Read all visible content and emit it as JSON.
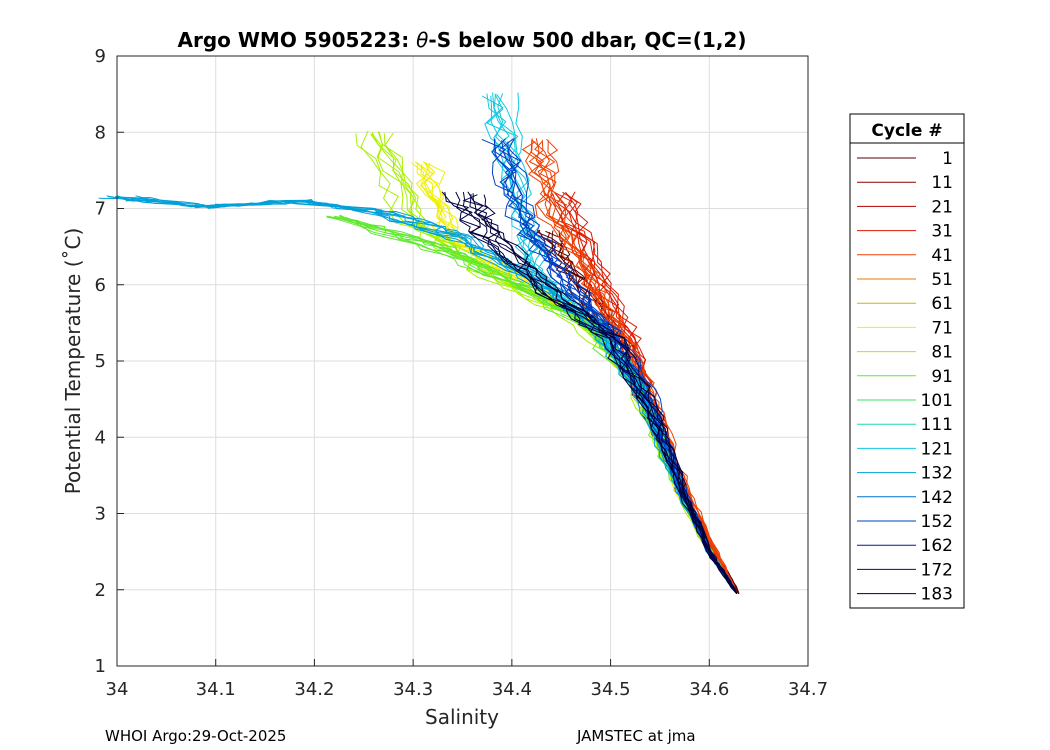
{
  "chart_data": {
    "type": "line",
    "title_parts": {
      "prefix": "Argo WMO 5905223: ",
      "theta": "θ",
      "suffix": "-S below 500 dbar,  QC=(1,2)"
    },
    "xlabel": "Salinity",
    "ylabel": "Potential Temperature (˚C)",
    "xlim": [
      34.0,
      34.7
    ],
    "ylim": [
      1,
      9
    ],
    "xticks": [
      "34",
      "34.1",
      "34.2",
      "34.3",
      "34.4",
      "34.5",
      "34.6",
      "34.7"
    ],
    "xtick_values": [
      34.0,
      34.1,
      34.2,
      34.3,
      34.4,
      34.5,
      34.6,
      34.7
    ],
    "yticks": [
      "1",
      "2",
      "3",
      "4",
      "5",
      "6",
      "7",
      "8",
      "9"
    ],
    "ytick_values": [
      1,
      2,
      3,
      4,
      5,
      6,
      7,
      8,
      9
    ],
    "grid": true,
    "legend": {
      "title": "Cycle #",
      "position": "right-outside",
      "entries": [
        {
          "label": "1",
          "color": "#5a0000"
        },
        {
          "label": "11",
          "color": "#8c0000"
        },
        {
          "label": "21",
          "color": "#b40000"
        },
        {
          "label": "31",
          "color": "#dc1a00"
        },
        {
          "label": "41",
          "color": "#f04000"
        },
        {
          "label": "51",
          "color": "#e87a00"
        },
        {
          "label": "61",
          "color": "#d2b400"
        },
        {
          "label": "71",
          "color": "#f0f000"
        },
        {
          "label": "81",
          "color": "#a8f000"
        },
        {
          "label": "91",
          "color": "#60e830"
        },
        {
          "label": "101",
          "color": "#38e060"
        },
        {
          "label": "111",
          "color": "#20d8b0"
        },
        {
          "label": "121",
          "color": "#10c8e0"
        },
        {
          "label": "132",
          "color": "#00a0d8"
        },
        {
          "label": "142",
          "color": "#0070d0"
        },
        {
          "label": "152",
          "color": "#0040c8"
        },
        {
          "label": "162",
          "color": "#0018a8"
        },
        {
          "label": "172",
          "color": "#000c78"
        },
        {
          "label": "183",
          "color": "#000040"
        }
      ]
    },
    "representative_profiles": [
      {
        "cycle": "1",
        "color": "#5a0000",
        "points": [
          [
            34.43,
            6.7
          ],
          [
            34.47,
            6.0
          ],
          [
            34.51,
            5.2
          ],
          [
            34.54,
            4.3
          ],
          [
            34.57,
            3.3
          ],
          [
            34.6,
            2.6
          ],
          [
            34.63,
            1.95
          ]
        ]
      },
      {
        "cycle": "31",
        "color": "#dc1a00",
        "points": [
          [
            34.45,
            7.2
          ],
          [
            34.48,
            6.3
          ],
          [
            34.52,
            5.3
          ],
          [
            34.545,
            4.3
          ],
          [
            34.57,
            3.4
          ],
          [
            34.6,
            2.6
          ],
          [
            34.628,
            1.95
          ]
        ]
      },
      {
        "cycle": "41",
        "color": "#f04000",
        "points": [
          [
            34.42,
            7.9
          ],
          [
            34.44,
            6.9
          ],
          [
            34.48,
            6.0
          ],
          [
            34.52,
            5.1
          ],
          [
            34.55,
            4.2
          ],
          [
            34.58,
            3.2
          ],
          [
            34.628,
            1.95
          ]
        ]
      },
      {
        "cycle": "71",
        "color": "#f0f000",
        "points": [
          [
            34.31,
            7.6
          ],
          [
            34.34,
            6.6
          ],
          [
            34.42,
            6.0
          ],
          [
            34.49,
            5.4
          ],
          [
            34.53,
            4.6
          ],
          [
            34.56,
            3.6
          ],
          [
            34.6,
            2.5
          ],
          [
            34.628,
            1.95
          ]
        ]
      },
      {
        "cycle": "81",
        "color": "#a8f000",
        "points": [
          [
            34.26,
            8.0
          ],
          [
            34.3,
            6.8
          ],
          [
            34.38,
            6.1
          ],
          [
            34.46,
            5.6
          ],
          [
            34.52,
            4.8
          ],
          [
            34.555,
            3.8
          ],
          [
            34.59,
            2.7
          ],
          [
            34.628,
            1.95
          ]
        ]
      },
      {
        "cycle": "91",
        "color": "#60e830",
        "points": [
          [
            34.22,
            6.9
          ],
          [
            34.34,
            6.4
          ],
          [
            34.42,
            5.9
          ],
          [
            34.48,
            5.4
          ],
          [
            34.53,
            4.6
          ],
          [
            34.56,
            3.6
          ],
          [
            34.6,
            2.5
          ],
          [
            34.628,
            1.95
          ]
        ]
      },
      {
        "cycle": "121",
        "color": "#10c8e0",
        "points": [
          [
            34.38,
            8.5
          ],
          [
            34.4,
            7.2
          ],
          [
            34.42,
            6.2
          ],
          [
            34.48,
            5.5
          ],
          [
            34.53,
            4.6
          ],
          [
            34.56,
            3.6
          ],
          [
            34.6,
            2.5
          ],
          [
            34.628,
            1.95
          ]
        ]
      },
      {
        "cycle": "132",
        "color": "#00a0d8",
        "points": [
          [
            34.0,
            7.15
          ],
          [
            34.09,
            7.02
          ],
          [
            34.18,
            7.1
          ],
          [
            34.27,
            6.95
          ],
          [
            34.35,
            6.6
          ],
          [
            34.43,
            6.0
          ],
          [
            34.49,
            5.4
          ],
          [
            34.53,
            4.6
          ],
          [
            34.56,
            3.6
          ],
          [
            34.6,
            2.5
          ],
          [
            34.628,
            1.95
          ]
        ]
      },
      {
        "cycle": "152",
        "color": "#0040c8",
        "points": [
          [
            34.39,
            7.9
          ],
          [
            34.41,
            6.9
          ],
          [
            34.45,
            6.1
          ],
          [
            34.5,
            5.4
          ],
          [
            34.54,
            4.5
          ],
          [
            34.57,
            3.4
          ],
          [
            34.6,
            2.5
          ],
          [
            34.628,
            1.95
          ]
        ]
      },
      {
        "cycle": "183",
        "color": "#000040",
        "points": [
          [
            34.35,
            7.2
          ],
          [
            34.38,
            6.6
          ],
          [
            34.44,
            5.9
          ],
          [
            34.5,
            5.3
          ],
          [
            34.54,
            4.4
          ],
          [
            34.57,
            3.4
          ],
          [
            34.6,
            2.5
          ],
          [
            34.628,
            1.95
          ]
        ]
      }
    ]
  },
  "footer": {
    "left": "WHOI Argo:29-Oct-2025",
    "right": "JAMSTEC at jma"
  }
}
